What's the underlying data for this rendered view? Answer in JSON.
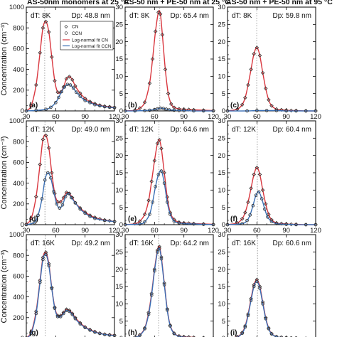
{
  "column_titles": [
    "AS-50nm monomers at 25 °C",
    "AS-50 nm + PE-50 nm at 25 °C",
    "AS-50 nm + PE-50 nm at 95 °C"
  ],
  "y_axis_label": "Concentration (cm⁻³)",
  "legend": {
    "cn": "CN",
    "ccn": "CCN",
    "fit_cn": "Log-normal fit CN",
    "fit_ccn": "Log-normal fit CCN"
  },
  "colors": {
    "cn_fit": "#d9363e",
    "ccn_fit": "#3a6fb5",
    "marker": "#333333",
    "ref_line": "#888888"
  },
  "chart_data": [
    {
      "type": "line",
      "panel": "(a)",
      "title": "AS-50nm monomers at 25 °C",
      "ylabel": "Concentration (cm⁻³)",
      "dT": "dT: 8K",
      "Dp": "Dp: 48.8 nm",
      "xlim": [
        30,
        120
      ],
      "ylim": [
        0,
        1000
      ],
      "xticks": [
        "30",
        "60",
        "90",
        "120"
      ],
      "yticks": [
        "0",
        "200",
        "400",
        "600",
        "800",
        "1000"
      ],
      "ref_x": 48.8,
      "series": [
        {
          "name": "CN",
          "x": [
            30,
            35,
            40,
            44,
            47,
            50,
            53,
            56,
            59,
            62,
            65,
            68,
            71,
            74,
            77,
            80,
            85,
            90,
            95,
            100,
            105,
            110,
            115,
            120
          ],
          "values": [
            0,
            50,
            250,
            560,
            800,
            860,
            760,
            520,
            290,
            180,
            180,
            230,
            310,
            330,
            300,
            240,
            170,
            120,
            90,
            70,
            55,
            45,
            40,
            35
          ]
        },
        {
          "name": "CCN",
          "x": [
            30,
            40,
            50,
            55,
            60,
            63,
            66,
            69,
            72,
            75,
            78,
            81,
            85,
            90,
            95,
            100,
            105,
            110,
            115,
            120
          ],
          "values": [
            0,
            5,
            15,
            35,
            80,
            130,
            185,
            230,
            255,
            250,
            220,
            180,
            140,
            100,
            80,
            60,
            50,
            40,
            35,
            30
          ]
        }
      ]
    },
    {
      "type": "line",
      "panel": "(b)",
      "title": "AS-50 nm + PE-50 nm at 25 °C",
      "dT": "dT: 8K",
      "Dp": "Dp: 65.4 nm",
      "xlim": [
        30,
        120
      ],
      "ylim": [
        0,
        30
      ],
      "xticks": [
        "30",
        "60",
        "90",
        "120"
      ],
      "yticks": [
        "0",
        "5",
        "10",
        "15",
        "20",
        "25",
        "30"
      ],
      "ref_x": 65.4,
      "series": [
        {
          "name": "CN",
          "x": [
            30,
            40,
            45,
            50,
            55,
            58,
            61,
            64,
            66,
            68,
            71,
            74,
            77,
            80,
            85,
            90,
            95,
            100,
            110,
            120
          ],
          "values": [
            0,
            0.2,
            0.8,
            2.5,
            8,
            15,
            23,
            28.5,
            28,
            22,
            12,
            5,
            2,
            1,
            0.6,
            0.5,
            0.4,
            0.3,
            0.2,
            0.1
          ]
        },
        {
          "name": "CCN",
          "x": [
            30,
            40,
            50,
            55,
            60,
            63,
            66,
            69,
            72,
            75,
            80,
            85,
            90,
            100,
            110,
            120
          ],
          "values": [
            0,
            0,
            0.1,
            0.2,
            0.4,
            0.6,
            0.8,
            0.7,
            0.5,
            0.3,
            0.2,
            0.1,
            0.1,
            0,
            0,
            0
          ]
        }
      ]
    },
    {
      "type": "line",
      "panel": "(c)",
      "title": "AS-50 nm + PE-50 nm at 95 °C",
      "dT": "dT: 8K",
      "Dp": "Dp: 59.8 nm",
      "xlim": [
        30,
        120
      ],
      "ylim": [
        0,
        30
      ],
      "xticks": [
        "30",
        "60",
        "90",
        "120"
      ],
      "yticks": [
        "0",
        "5",
        "10",
        "15",
        "20",
        "25",
        "30"
      ],
      "ref_x": 59.8,
      "series": [
        {
          "name": "CN",
          "x": [
            30,
            40,
            45,
            48,
            51,
            54,
            57,
            60,
            63,
            66,
            69,
            72,
            75,
            80,
            85,
            90,
            95,
            100,
            110,
            120
          ],
          "values": [
            0,
            0.5,
            1.8,
            3.8,
            7.5,
            12,
            16.5,
            18.3,
            16,
            11,
            6.5,
            3.2,
            1.5,
            0.5,
            0.3,
            0.2,
            0.1,
            0.1,
            0,
            0
          ]
        },
        {
          "name": "CCN",
          "x": [
            30,
            50,
            60,
            70,
            80,
            90,
            100,
            110,
            120
          ],
          "values": [
            0,
            0,
            0.1,
            0.1,
            0.1,
            0,
            0,
            0,
            0
          ]
        }
      ]
    },
    {
      "type": "line",
      "panel": "(d)",
      "dT": "dT: 12K",
      "Dp": "Dp: 49.0 nm",
      "ylabel": "Concentration (cm⁻³)",
      "xlim": [
        30,
        120
      ],
      "ylim": [
        0,
        1000
      ],
      "xticks": [
        "30",
        "60",
        "90",
        "120"
      ],
      "yticks": [
        "0",
        "200",
        "400",
        "600",
        "800",
        "1000"
      ],
      "ref_x": 49.0,
      "series": [
        {
          "name": "CN",
          "x": [
            30,
            35,
            40,
            44,
            47,
            50,
            53,
            56,
            59,
            62,
            65,
            68,
            71,
            74,
            77,
            80,
            85,
            90,
            95,
            100,
            105,
            110,
            115,
            120
          ],
          "values": [
            5,
            60,
            270,
            580,
            820,
            860,
            740,
            500,
            300,
            220,
            220,
            260,
            310,
            300,
            260,
            210,
            160,
            120,
            90,
            70,
            55,
            45,
            38,
            30
          ]
        },
        {
          "name": "CCN",
          "x": [
            30,
            38,
            42,
            46,
            49,
            52,
            55,
            58,
            61,
            64,
            67,
            70,
            73,
            76,
            80,
            85,
            90,
            95,
            100,
            110,
            120
          ],
          "values": [
            0,
            20,
            90,
            250,
            430,
            500,
            450,
            320,
            200,
            160,
            190,
            270,
            300,
            260,
            210,
            150,
            110,
            80,
            60,
            40,
            30
          ]
        }
      ]
    },
    {
      "type": "line",
      "panel": "(e)",
      "dT": "dT: 12K",
      "Dp": "Dp: 64.6 nm",
      "xlim": [
        30,
        120
      ],
      "ylim": [
        0,
        30
      ],
      "xticks": [
        "30",
        "60",
        "90",
        "120"
      ],
      "yticks": [
        "0",
        "5",
        "10",
        "15",
        "20",
        "25",
        "30"
      ],
      "ref_x": 64.6,
      "series": [
        {
          "name": "CN",
          "x": [
            30,
            40,
            45,
            50,
            54,
            57,
            60,
            63,
            65,
            67,
            70,
            73,
            76,
            80,
            85,
            90,
            95,
            100,
            110,
            120
          ],
          "values": [
            0,
            0.3,
            1,
            3,
            7,
            12.5,
            18.5,
            23.5,
            24.5,
            22,
            15,
            8,
            3.5,
            1.5,
            0.7,
            0.5,
            0.4,
            0.3,
            0.2,
            0.1
          ]
        },
        {
          "name": "CCN",
          "x": [
            30,
            45,
            50,
            55,
            58,
            61,
            64,
            67,
            70,
            73,
            76,
            80,
            85,
            90,
            100,
            110,
            120
          ],
          "values": [
            0,
            0.2,
            0.8,
            3,
            6.5,
            11,
            14.5,
            15.5,
            12,
            6.5,
            3,
            1,
            0.5,
            0.3,
            0.2,
            0.1,
            0
          ]
        }
      ]
    },
    {
      "type": "line",
      "panel": "(f)",
      "dT": "dT: 12K",
      "Dp": "Dp: 60.4 nm",
      "xlim": [
        30,
        120
      ],
      "ylim": [
        0,
        30
      ],
      "xticks": [
        "30",
        "60",
        "90",
        "120"
      ],
      "yticks": [
        "0",
        "5",
        "10",
        "15",
        "20",
        "25",
        "30"
      ],
      "ref_x": 60.4,
      "series": [
        {
          "name": "CN",
          "x": [
            30,
            40,
            45,
            48,
            51,
            54,
            57,
            60,
            63,
            66,
            69,
            72,
            75,
            80,
            85,
            90,
            95,
            100,
            110,
            120
          ],
          "values": [
            0,
            0.5,
            1.7,
            3.5,
            6.5,
            10.5,
            14.5,
            16.5,
            14.5,
            10,
            6,
            3,
            1.4,
            0.5,
            0.3,
            0.2,
            0.1,
            0.1,
            0,
            0
          ]
        },
        {
          "name": "CCN",
          "x": [
            30,
            45,
            50,
            53,
            56,
            59,
            62,
            65,
            68,
            71,
            75,
            80,
            90,
            100,
            110,
            120
          ],
          "values": [
            0,
            0.3,
            1.2,
            2.8,
            5.5,
            8.5,
            9.5,
            7.5,
            4.5,
            2.2,
            0.9,
            0.3,
            0.1,
            0,
            0,
            0
          ]
        }
      ]
    },
    {
      "type": "line",
      "panel": "(g)",
      "dT": "dT: 16K",
      "Dp": "Dp: 49.2 nm",
      "ylabel": "Concentration (cm⁻³)",
      "xlim": [
        30,
        120
      ],
      "ylim": [
        0,
        1000
      ],
      "xticks": [
        "30",
        "60",
        "90",
        "120"
      ],
      "yticks": [
        "0",
        "200",
        "400",
        "600",
        "800",
        "1000"
      ],
      "ref_x": 49.2,
      "series": [
        {
          "name": "CN",
          "x": [
            30,
            35,
            40,
            44,
            47,
            50,
            53,
            56,
            59,
            62,
            65,
            68,
            71,
            74,
            77,
            80,
            85,
            90,
            95,
            100,
            105,
            110,
            115,
            120
          ],
          "values": [
            5,
            60,
            260,
            560,
            780,
            830,
            720,
            490,
            300,
            220,
            220,
            250,
            280,
            270,
            240,
            200,
            150,
            110,
            85,
            65,
            50,
            40,
            35,
            30
          ]
        },
        {
          "name": "CCN",
          "x": [
            30,
            35,
            40,
            44,
            47,
            50,
            53,
            56,
            59,
            62,
            65,
            68,
            71,
            74,
            77,
            80,
            85,
            90,
            95,
            100,
            105,
            110,
            115,
            120
          ],
          "values": [
            3,
            50,
            240,
            540,
            760,
            810,
            700,
            480,
            290,
            210,
            210,
            240,
            270,
            260,
            230,
            190,
            140,
            105,
            80,
            60,
            48,
            38,
            32,
            28
          ]
        }
      ]
    },
    {
      "type": "line",
      "panel": "(h)",
      "dT": "dT: 16K",
      "Dp": "Dp: 64.2 nm",
      "xlim": [
        30,
        120
      ],
      "ylim": [
        0,
        30
      ],
      "xticks": [
        "30",
        "60",
        "90",
        "120"
      ],
      "yticks": [
        "0",
        "5",
        "10",
        "15",
        "20",
        "25",
        "30"
      ],
      "ref_x": 64.2,
      "series": [
        {
          "name": "CN",
          "x": [
            30,
            40,
            45,
            50,
            54,
            57,
            60,
            63,
            65,
            67,
            70,
            73,
            76,
            80,
            85,
            90,
            95,
            100,
            110,
            120
          ],
          "values": [
            0,
            0.3,
            1,
            3,
            7.5,
            13,
            20,
            25.5,
            26.5,
            23.5,
            16,
            8.5,
            3.8,
            1.5,
            0.7,
            0.5,
            0.4,
            0.3,
            0.2,
            0.1
          ]
        },
        {
          "name": "CCN",
          "x": [
            30,
            40,
            45,
            50,
            54,
            57,
            60,
            63,
            65,
            67,
            70,
            73,
            76,
            80,
            85,
            90,
            95,
            100,
            110,
            120
          ],
          "values": [
            0,
            0.3,
            0.9,
            2.8,
            7,
            12.5,
            19.5,
            25,
            26,
            23,
            15.5,
            8.2,
            3.6,
            1.4,
            0.6,
            0.4,
            0.3,
            0.2,
            0.1,
            0
          ]
        }
      ]
    },
    {
      "type": "line",
      "panel": "(i)",
      "dT": "dT: 16K",
      "Dp": "Dp: 60.6 nm",
      "xlim": [
        30,
        120
      ],
      "ylim": [
        0,
        30
      ],
      "xticks": [
        "30",
        "60",
        "90",
        "120"
      ],
      "yticks": [
        "0",
        "5",
        "10",
        "15",
        "20",
        "25",
        "30"
      ],
      "ref_x": 60.6,
      "series": [
        {
          "name": "CN",
          "x": [
            30,
            40,
            45,
            48,
            51,
            54,
            57,
            60,
            63,
            66,
            69,
            72,
            75,
            80,
            85,
            90,
            95,
            100,
            110,
            120
          ],
          "values": [
            0,
            0.5,
            1.7,
            3.6,
            7,
            11.5,
            15.5,
            17,
            15,
            10.5,
            6,
            3,
            1.4,
            0.5,
            0.3,
            0.2,
            0.1,
            0.1,
            0,
            0
          ]
        },
        {
          "name": "CCN",
          "x": [
            30,
            40,
            45,
            48,
            51,
            54,
            57,
            60,
            63,
            66,
            69,
            72,
            75,
            80,
            85,
            90,
            95,
            100,
            110,
            120
          ],
          "values": [
            0,
            0.4,
            1.5,
            3.3,
            6.6,
            11,
            15,
            16.5,
            14.5,
            10,
            5.7,
            2.8,
            1.3,
            0.5,
            0.3,
            0.2,
            0.1,
            0.1,
            0,
            0
          ]
        }
      ]
    }
  ]
}
